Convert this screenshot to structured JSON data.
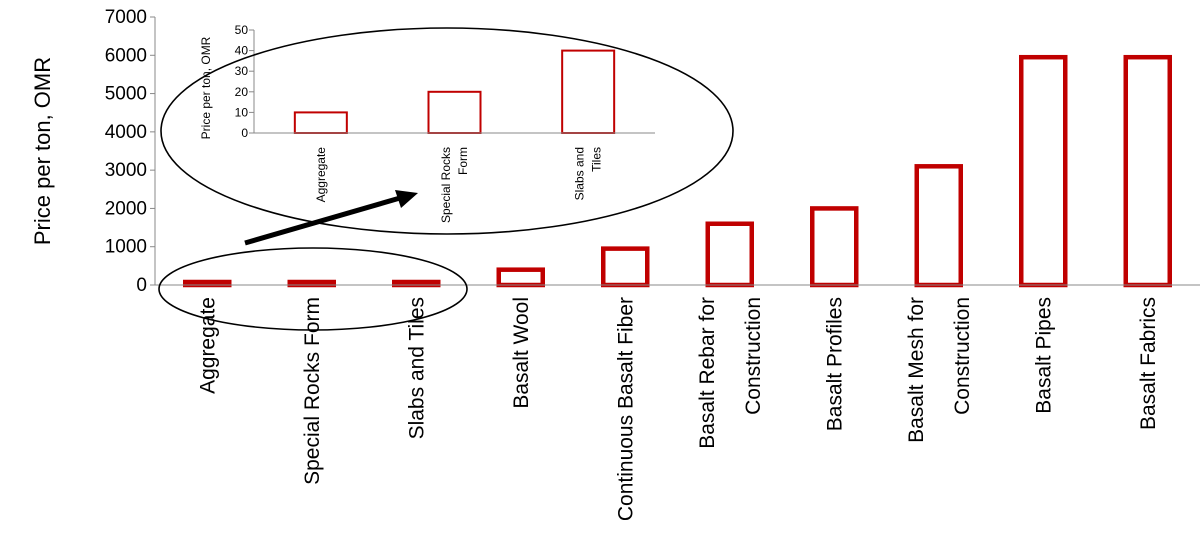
{
  "chart_data": [
    {
      "type": "bar",
      "title": "",
      "xlabel": "",
      "ylabel": "Price per ton, OMR",
      "ylim": [
        0,
        7000
      ],
      "yticks": [
        0,
        1000,
        2000,
        3000,
        4000,
        5000,
        6000,
        7000
      ],
      "categories": [
        [
          "Aggregate"
        ],
        [
          "Special Rocks Form"
        ],
        [
          "Slabs and Tiles"
        ],
        [
          "Basalt Wool"
        ],
        [
          "Continuous Basalt Fiber"
        ],
        [
          "Basalt Rebar for",
          "Construction"
        ],
        [
          "Basalt Profiles"
        ],
        [
          "Basalt Mesh for",
          "Construction"
        ],
        [
          "Basalt Pipes"
        ],
        [
          "Basalt Fabrics"
        ]
      ],
      "values": [
        10,
        20,
        40,
        400,
        950,
        1600,
        2000,
        3100,
        5950,
        5950
      ],
      "bar_style": "hollow",
      "bar_color": "#c00000",
      "grid": false
    },
    {
      "type": "bar",
      "title": "",
      "xlabel": "",
      "ylabel": "Price per ton, OMR",
      "ylim": [
        0,
        50
      ],
      "yticks": [
        0,
        10,
        20,
        30,
        40,
        50
      ],
      "categories": [
        [
          "Aggregate"
        ],
        [
          "Special Rocks",
          "Form"
        ],
        [
          "Slabs and",
          "Tiles"
        ]
      ],
      "values": [
        10,
        20,
        40
      ],
      "bar_style": "hollow",
      "bar_color": "#c00000",
      "grid": false,
      "placement": "inset, top-left"
    }
  ],
  "colors": {
    "bar": "#c00000",
    "axis": "#000000",
    "annotation": "#000000"
  }
}
